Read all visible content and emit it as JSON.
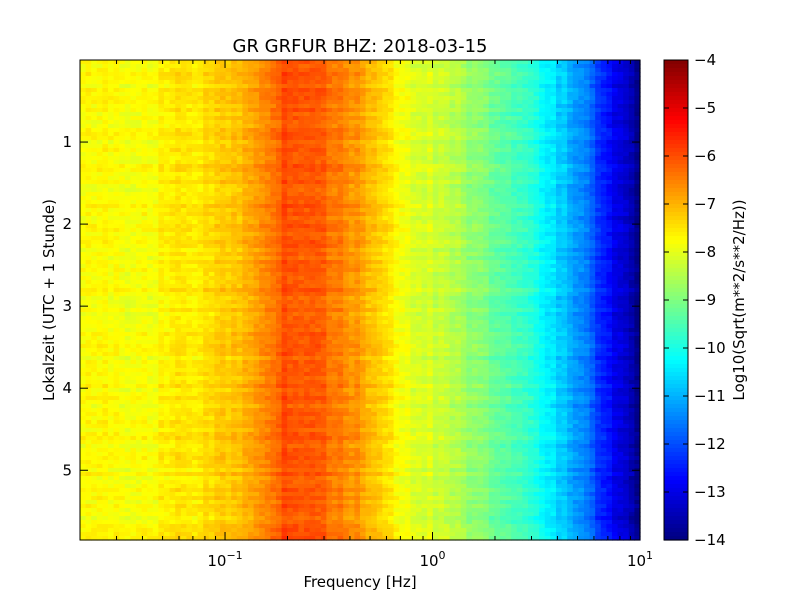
{
  "chart_data": {
    "type": "heatmap",
    "title": "GR GRFUR BHZ: 2018-03-15",
    "xlabel": "Frequency [Hz]",
    "ylabel": "Lokalzeit (UTC + 1 Stunde)",
    "colorbar_label": "Log10(Sqrt(m**2/s**2/Hz))",
    "x_scale": "log",
    "xlim": [
      0.02,
      10
    ],
    "x_ticks": [
      {
        "value": 0.1,
        "base": "10",
        "exp": "−1"
      },
      {
        "value": 1,
        "base": "10",
        "exp": "0"
      },
      {
        "value": 10,
        "base": "10",
        "exp": "1"
      }
    ],
    "ylim": [
      5.85,
      0
    ],
    "y_ticks": [
      {
        "value": 1,
        "label": "1"
      },
      {
        "value": 2,
        "label": "2"
      },
      {
        "value": 3,
        "label": "3"
      },
      {
        "value": 4,
        "label": "4"
      },
      {
        "value": 5,
        "label": "5"
      }
    ],
    "clim": [
      -14,
      -4
    ],
    "colorbar_ticks": [
      {
        "value": -4,
        "label": "−4"
      },
      {
        "value": -5,
        "label": "−5"
      },
      {
        "value": -6,
        "label": "−6"
      },
      {
        "value": -7,
        "label": "−7"
      },
      {
        "value": -8,
        "label": "−8"
      },
      {
        "value": -9,
        "label": "−9"
      },
      {
        "value": -10,
        "label": "−10"
      },
      {
        "value": -11,
        "label": "−11"
      },
      {
        "value": -12,
        "label": "−12"
      },
      {
        "value": -13,
        "label": "−13"
      },
      {
        "value": -14,
        "label": "−14"
      }
    ],
    "colormap": "jet",
    "frequency_profile": {
      "freq_hz": [
        0.02,
        0.04,
        0.06,
        0.09,
        0.12,
        0.15,
        0.2,
        0.3,
        0.45,
        0.6,
        0.8,
        1.0,
        1.3,
        2.0,
        3.0,
        4.0,
        5.5,
        7.0,
        8.5,
        10.0
      ],
      "level": [
        -7.8,
        -7.8,
        -7.6,
        -7.4,
        -7.1,
        -6.6,
        -6.0,
        -6.2,
        -6.8,
        -7.5,
        -8.1,
        -8.2,
        -8.5,
        -9.2,
        -9.9,
        -10.6,
        -11.6,
        -12.6,
        -13.3,
        -13.9
      ]
    },
    "grid": false
  }
}
